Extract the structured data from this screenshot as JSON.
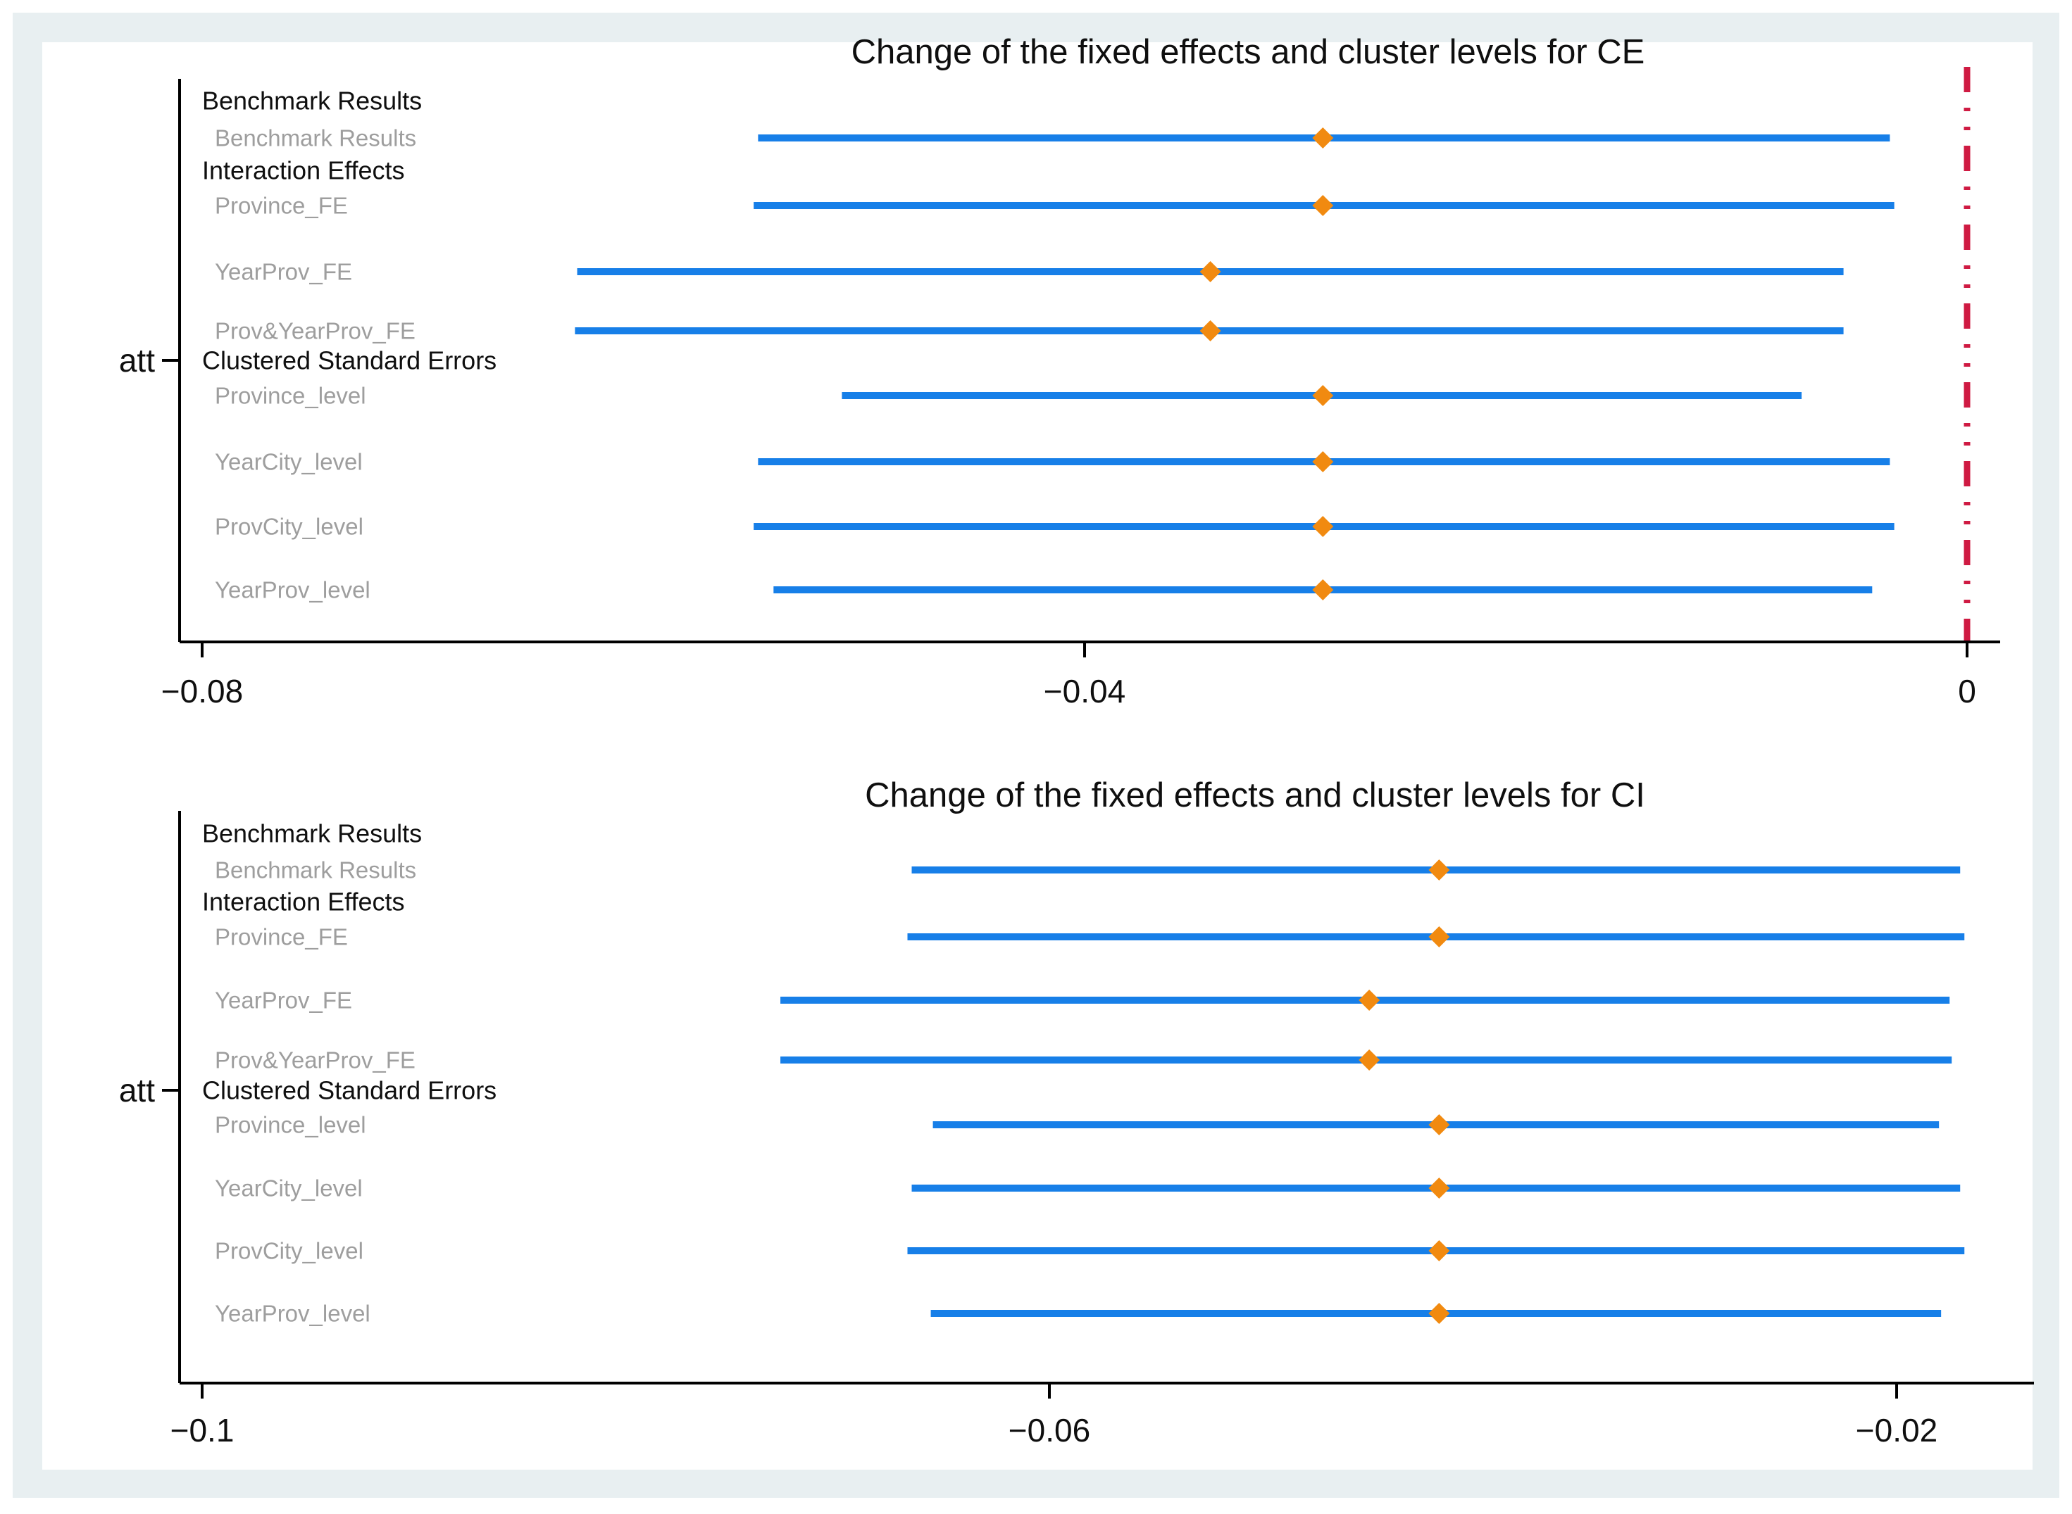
{
  "figure": {
    "page_color": "#ffffff",
    "frame_color": "#e8eff1",
    "panel_color": "#ffffff"
  },
  "colors": {
    "ci_line": "#177fe8",
    "marker": "#f18a10",
    "ref_line": "#cf1a42",
    "axis": "#000000",
    "title_text": "#0f0f0f",
    "heading_text": "#0f0f0f",
    "item_text": "#9e9e9e",
    "tick_text": "#0f0f0f"
  },
  "chart_data": [
    {
      "type": "scatter",
      "subtype": "coefficient-forest-plot",
      "title": "Change of the fixed effects and cluster levels for CE",
      "y_axis_label": "att",
      "xlim": [
        -0.081,
        0.0015
      ],
      "grid": false,
      "legend": "none",
      "ref_line_value": 0,
      "x_ticks": [
        {
          "value": -0.08,
          "label": "−0.08"
        },
        {
          "value": -0.04,
          "label": "−0.04"
        },
        {
          "value": 0,
          "label": "0"
        }
      ],
      "rows": [
        {
          "kind": "heading",
          "label": "Benchmark Results"
        },
        {
          "kind": "item",
          "label": "Benchmark Results",
          "estimate": -0.0292,
          "ci_low": -0.0548,
          "ci_high": -0.0035
        },
        {
          "kind": "heading",
          "label": "Interaction Effects"
        },
        {
          "kind": "item",
          "label": "Province_FE",
          "estimate": -0.0292,
          "ci_low": -0.055,
          "ci_high": -0.0033
        },
        {
          "kind": "item",
          "label": "YearProv_FE",
          "estimate": -0.0343,
          "ci_low": -0.063,
          "ci_high": -0.0056
        },
        {
          "kind": "item",
          "label": "Prov&YearProv_FE",
          "estimate": -0.0343,
          "ci_low": -0.0631,
          "ci_high": -0.0056
        },
        {
          "kind": "heading",
          "label": "Clustered Standard Errors"
        },
        {
          "kind": "item",
          "label": "Province_level",
          "estimate": -0.0292,
          "ci_low": -0.051,
          "ci_high": -0.0075
        },
        {
          "kind": "item",
          "label": "YearCity_level",
          "estimate": -0.0292,
          "ci_low": -0.0548,
          "ci_high": -0.0035
        },
        {
          "kind": "item",
          "label": "ProvCity_level",
          "estimate": -0.0292,
          "ci_low": -0.055,
          "ci_high": -0.0033
        },
        {
          "kind": "item",
          "label": "YearProv_level",
          "estimate": -0.0292,
          "ci_low": -0.0541,
          "ci_high": -0.0043
        }
      ]
    },
    {
      "type": "scatter",
      "subtype": "coefficient-forest-plot",
      "title": "Change of the fixed effects and cluster levels for CI",
      "y_axis_label": "att",
      "xlim": [
        -0.1011,
        -0.0135
      ],
      "grid": false,
      "legend": "none",
      "ref_line_value": null,
      "x_ticks": [
        {
          "value": -0.1,
          "label": "−0.1"
        },
        {
          "value": -0.06,
          "label": "−0.06"
        },
        {
          "value": -0.02,
          "label": "−0.02"
        }
      ],
      "rows": [
        {
          "kind": "heading",
          "label": "Benchmark Results"
        },
        {
          "kind": "item",
          "label": "Benchmark Results",
          "estimate": -0.0416,
          "ci_low": -0.0665,
          "ci_high": -0.017
        },
        {
          "kind": "heading",
          "label": "Interaction Effects"
        },
        {
          "kind": "item",
          "label": "Province_FE",
          "estimate": -0.0416,
          "ci_low": -0.0667,
          "ci_high": -0.0168
        },
        {
          "kind": "item",
          "label": "YearProv_FE",
          "estimate": -0.0449,
          "ci_low": -0.0727,
          "ci_high": -0.0175
        },
        {
          "kind": "item",
          "label": "Prov&YearProv_FE",
          "estimate": -0.0449,
          "ci_low": -0.0727,
          "ci_high": -0.0174
        },
        {
          "kind": "heading",
          "label": "Clustered Standard Errors"
        },
        {
          "kind": "item",
          "label": "Province_level",
          "estimate": -0.0416,
          "ci_low": -0.0655,
          "ci_high": -0.018
        },
        {
          "kind": "item",
          "label": "YearCity_level",
          "estimate": -0.0416,
          "ci_low": -0.0665,
          "ci_high": -0.017
        },
        {
          "kind": "item",
          "label": "ProvCity_level",
          "estimate": -0.0416,
          "ci_low": -0.0667,
          "ci_high": -0.0168
        },
        {
          "kind": "item",
          "label": "YearProv_level",
          "estimate": -0.0416,
          "ci_low": -0.0656,
          "ci_high": -0.0179
        }
      ]
    }
  ]
}
